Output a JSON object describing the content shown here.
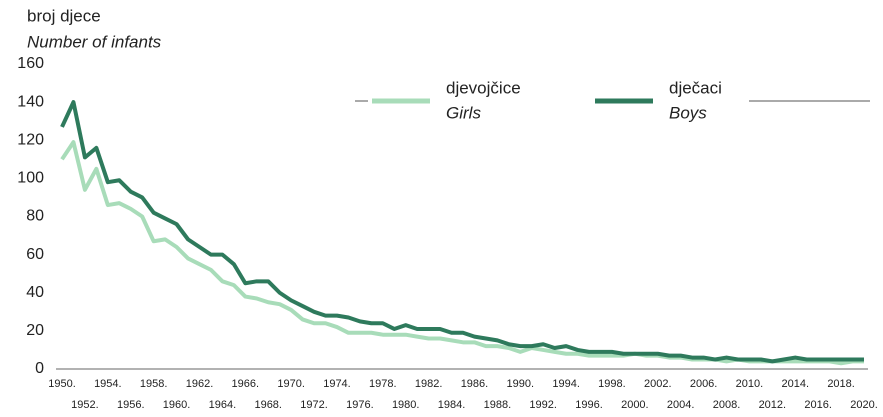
{
  "chart_data": {
    "type": "line",
    "ylabel": "broj djece",
    "ylabel_en": "Number of infants",
    "x": [
      1950,
      1951,
      1952,
      1953,
      1954,
      1955,
      1956,
      1957,
      1958,
      1959,
      1960,
      1961,
      1962,
      1963,
      1964,
      1965,
      1966,
      1967,
      1968,
      1969,
      1970,
      1971,
      1972,
      1973,
      1974,
      1975,
      1976,
      1977,
      1978,
      1979,
      1980,
      1981,
      1982,
      1983,
      1984,
      1985,
      1986,
      1987,
      1988,
      1989,
      1990,
      1991,
      1992,
      1993,
      1994,
      1995,
      1996,
      1997,
      1998,
      1999,
      2000,
      2001,
      2002,
      2003,
      2004,
      2005,
      2006,
      2007,
      2008,
      2009,
      2010,
      2011,
      2012,
      2013,
      2014,
      2015,
      2016,
      2017,
      2018,
      2019,
      2020
    ],
    "series": [
      {
        "name": "djevojčice",
        "name_en": "Girls",
        "color": "#a8dcb9",
        "values": [
          110,
          119,
          94,
          105,
          86,
          87,
          84,
          80,
          67,
          68,
          64,
          58,
          55,
          52,
          46,
          44,
          38,
          37,
          35,
          34,
          31,
          26,
          24,
          24,
          22,
          19,
          19,
          19,
          18,
          18,
          18,
          17,
          16,
          16,
          15,
          14,
          14,
          12,
          12,
          11,
          9,
          11,
          10,
          9,
          8,
          8,
          7,
          7,
          7,
          7,
          8,
          7,
          7,
          6,
          6,
          5,
          5,
          5,
          4,
          5,
          4,
          4,
          4,
          4,
          4,
          4,
          4,
          4,
          3,
          4,
          4
        ]
      },
      {
        "name": "dječaci",
        "name_en": "Boys",
        "color": "#2e7a5c",
        "values": [
          127,
          140,
          111,
          116,
          98,
          99,
          93,
          90,
          82,
          79,
          76,
          68,
          64,
          60,
          60,
          55,
          45,
          46,
          46,
          40,
          36,
          33,
          30,
          28,
          28,
          27,
          25,
          24,
          24,
          21,
          23,
          21,
          21,
          21,
          19,
          19,
          17,
          16,
          15,
          13,
          12,
          12,
          13,
          11,
          12,
          10,
          9,
          9,
          9,
          8,
          8,
          8,
          8,
          7,
          7,
          6,
          6,
          5,
          6,
          5,
          5,
          5,
          4,
          5,
          6,
          5,
          5,
          5,
          5,
          5,
          5
        ]
      }
    ],
    "xlim": [
      1950,
      2020
    ],
    "xticks": [
      {
        "value": 1950,
        "label": "1950."
      },
      {
        "value": 1952,
        "label": "1952."
      },
      {
        "value": 1954,
        "label": "1954."
      },
      {
        "value": 1956,
        "label": "1956."
      },
      {
        "value": 1958,
        "label": "1958."
      },
      {
        "value": 1960,
        "label": "1960."
      },
      {
        "value": 1962,
        "label": "1962."
      },
      {
        "value": 1964,
        "label": "1964."
      },
      {
        "value": 1966,
        "label": "1966."
      },
      {
        "value": 1968,
        "label": "1968."
      },
      {
        "value": 1970,
        "label": "1970."
      },
      {
        "value": 1972,
        "label": "1972."
      },
      {
        "value": 1974,
        "label": "1974."
      },
      {
        "value": 1976,
        "label": "1976."
      },
      {
        "value": 1978,
        "label": "1978."
      },
      {
        "value": 1980,
        "label": "1980."
      },
      {
        "value": 1982,
        "label": "1982."
      },
      {
        "value": 1984,
        "label": "1984."
      },
      {
        "value": 1986,
        "label": "1986."
      },
      {
        "value": 1988,
        "label": "1988."
      },
      {
        "value": 1990,
        "label": "1990."
      },
      {
        "value": 1992,
        "label": "1992."
      },
      {
        "value": 1994,
        "label": "1994."
      },
      {
        "value": 1996,
        "label": "1996."
      },
      {
        "value": 1998,
        "label": "1998."
      },
      {
        "value": 2000,
        "label": "2000."
      },
      {
        "value": 2002,
        "label": "2002."
      },
      {
        "value": 2004,
        "label": "2004."
      },
      {
        "value": 2006,
        "label": "2006."
      },
      {
        "value": 2008,
        "label": "2008."
      },
      {
        "value": 2010,
        "label": "2010."
      },
      {
        "value": 2012,
        "label": "2012."
      },
      {
        "value": 2014,
        "label": "2014."
      },
      {
        "value": 2016,
        "label": "2016."
      },
      {
        "value": 2018,
        "label": "2018."
      },
      {
        "value": 2020,
        "label": "2020."
      }
    ],
    "ylim": [
      0,
      160
    ],
    "yticks": [
      0,
      20,
      40,
      60,
      80,
      100,
      120,
      140,
      160
    ]
  }
}
